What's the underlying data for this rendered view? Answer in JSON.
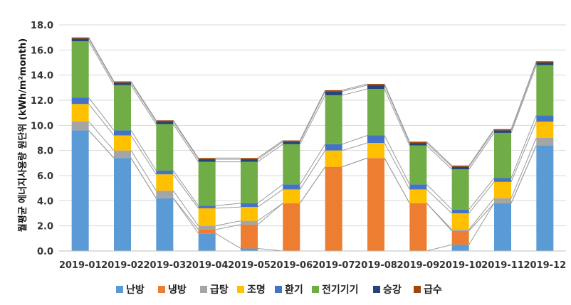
{
  "chart_data": {
    "type": "bar",
    "stacked": true,
    "title": "",
    "xlabel": "",
    "ylabel": "월평균 에너지사용량 원단위 (kWh/m²month)",
    "ylim": [
      0,
      18
    ],
    "yticks": [
      "0.0",
      "2.0",
      "4.0",
      "6.0",
      "8.0",
      "10.0",
      "12.0",
      "14.0",
      "16.0",
      "18.0"
    ],
    "grid": true,
    "legend_position": "bottom",
    "series_connector_lines": true,
    "categories": [
      "2019-01",
      "2019-02",
      "2019-03",
      "2019-04",
      "2019-05",
      "2019-06",
      "2019-07",
      "2019-08",
      "2019-09",
      "2019-10",
      "2019-11",
      "2019-12"
    ],
    "series": [
      {
        "name": "난방",
        "color": "#5B9BD5",
        "values": [
          9.6,
          7.4,
          4.2,
          1.4,
          0.2,
          0.0,
          0.0,
          0.0,
          0.0,
          0.5,
          3.8,
          8.4
        ]
      },
      {
        "name": "냉방",
        "color": "#ED7D31",
        "values": [
          0.0,
          0.0,
          0.0,
          0.3,
          1.9,
          3.8,
          6.7,
          7.4,
          3.8,
          1.1,
          0.0,
          0.0
        ]
      },
      {
        "name": "급탕",
        "color": "#A5A5A5",
        "values": [
          0.7,
          0.6,
          0.6,
          0.3,
          0.3,
          0.0,
          0.0,
          0.0,
          0.0,
          0.1,
          0.4,
          0.6
        ]
      },
      {
        "name": "조명",
        "color": "#FFC000",
        "values": [
          1.4,
          1.2,
          1.3,
          1.4,
          1.1,
          1.1,
          1.3,
          1.2,
          1.1,
          1.3,
          1.3,
          1.3
        ]
      },
      {
        "name": "환기",
        "color": "#4472C4",
        "values": [
          0.5,
          0.4,
          0.3,
          0.2,
          0.3,
          0.4,
          0.5,
          0.6,
          0.4,
          0.3,
          0.3,
          0.5
        ]
      },
      {
        "name": "전기기기",
        "color": "#70AD47",
        "values": [
          4.5,
          3.6,
          3.7,
          3.5,
          3.3,
          3.2,
          3.9,
          3.7,
          3.1,
          3.2,
          3.6,
          4.0
        ]
      },
      {
        "name": "승강",
        "color": "#264478",
        "values": [
          0.2,
          0.2,
          0.2,
          0.2,
          0.2,
          0.2,
          0.3,
          0.3,
          0.2,
          0.2,
          0.2,
          0.2
        ]
      },
      {
        "name": "급수",
        "color": "#9E480E",
        "values": [
          0.1,
          0.1,
          0.1,
          0.1,
          0.1,
          0.1,
          0.1,
          0.1,
          0.1,
          0.1,
          0.1,
          0.1
        ]
      }
    ]
  }
}
